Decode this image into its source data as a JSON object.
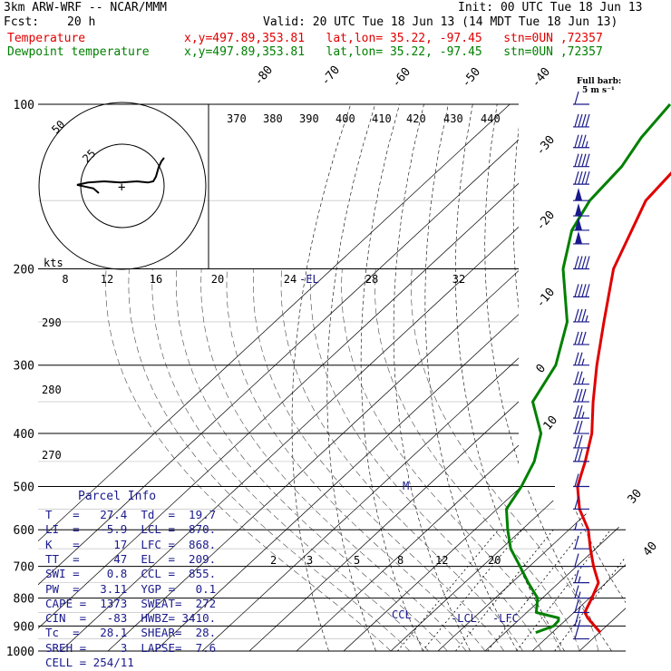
{
  "header": {
    "model": "3km ARW-WRF -- NCAR/MMM",
    "init": "Init: 00 UTC Tue 18 Jun 13",
    "fcst_label": "Fcst:",
    "fcst_value": "20 h",
    "valid": "Valid: 20 UTC Tue 18 Jun 13 (14 MDT Tue 18 Jun 13)",
    "temp_label": "Temperature",
    "temp_info": "x,y=497.89,353.81   lat,lon= 35.22, -97.45   stn=0UN ,72357",
    "dew_label": "Dewpoint temperature",
    "dew_info": "x,y=497.89,353.81   lat,lon= 35.22, -97.45   stn=0UN ,72357"
  },
  "colors": {
    "temperature": "#e00000",
    "dewpoint": "#008000",
    "text": "#1a1a8c",
    "hodograph": "#000000"
  },
  "parcel_info": {
    "title": "Parcel Info",
    "rows": [
      "T   =   27.4  Td  =  19.7",
      "LI  =   -5.9  LCL =  870.",
      "K   =     17  LFC =  868.",
      "TT  =     47  EL  =  209.",
      "SWI =    0.8  CCL =  855.",
      "PW  =   3.11  YGP =   0.1",
      "CAPE =  1373  SWEAT=  272",
      "CIN  =   -83  HWBZ= 3410.",
      "Tc  =   28.1  SHEAR=  28.",
      "SREH =     3  LAPSE=  7.6",
      "CELL = 254/11"
    ]
  },
  "wind_legend": {
    "line1": "Full barb:",
    "line2": "5 m s⁻¹"
  },
  "hodograph": {
    "units": "kts",
    "ring_labels": [
      "25",
      "50"
    ],
    "speed_labels": [
      "8",
      "12",
      "16",
      "20",
      "24",
      "28",
      "32"
    ],
    "points": [
      [
        -0.1,
        0.0
      ],
      [
        -0.2,
        0.2
      ],
      [
        -0.4,
        0.3
      ],
      [
        -0.5,
        0.35
      ],
      [
        -0.3,
        0.45
      ],
      [
        0.0,
        0.5
      ],
      [
        0.3,
        0.45
      ],
      [
        0.6,
        0.5
      ],
      [
        0.8,
        0.45
      ],
      [
        0.9,
        0.5
      ],
      [
        0.95,
        0.7
      ],
      [
        1.0,
        1.1
      ],
      [
        1.05,
        1.35
      ],
      [
        1.1,
        1.5
      ]
    ]
  },
  "chart_data": {
    "type": "line",
    "title": "",
    "ylabel": "",
    "xlabel": "",
    "pressure_levels": [
      100,
      200,
      300,
      400,
      500,
      600,
      700,
      800,
      900,
      1000
    ],
    "isotherm_labels": [
      "-80",
      "-70",
      "-60",
      "-50",
      "-40",
      "-30",
      "-20",
      "-10",
      "0",
      "10",
      "30",
      "40"
    ],
    "theta_labels": [
      "370",
      "380",
      "390",
      "400",
      "410",
      "420",
      "430",
      "440",
      "290",
      "280",
      "270"
    ],
    "mixing_ratio_labels": [
      "2",
      "3",
      "5",
      "8",
      "12",
      "20"
    ],
    "level_labels": {
      "el": "-EL",
      "lcl": "-LCL",
      "lfc": "-LFC",
      "ccl": "CCL",
      "m": "M"
    },
    "series": [
      {
        "name": "Temperature",
        "points": [
          [
            925,
            30.2
          ],
          [
            900,
            27.5
          ],
          [
            870,
            24.2
          ],
          [
            850,
            22.3
          ],
          [
            800,
            20.5
          ],
          [
            750,
            18.4
          ],
          [
            700,
            13.6
          ],
          [
            650,
            8.9
          ],
          [
            600,
            4.1
          ],
          [
            550,
            -2.5
          ],
          [
            500,
            -8.1
          ],
          [
            450,
            -12.2
          ],
          [
            400,
            -17.2
          ],
          [
            350,
            -24.2
          ],
          [
            300,
            -31.8
          ],
          [
            250,
            -40.2
          ],
          [
            200,
            -50.3
          ],
          [
            150,
            -59.1
          ],
          [
            120,
            -60.8
          ],
          [
            100,
            -62.0
          ]
        ]
      },
      {
        "name": "Dewpoint temperature",
        "points": [
          [
            925,
            16.5
          ],
          [
            900,
            18.8
          ],
          [
            880,
            18.6
          ],
          [
            870,
            18.0
          ],
          [
            850,
            12.0
          ],
          [
            800,
            9.0
          ],
          [
            750,
            3.5
          ],
          [
            700,
            -2.0
          ],
          [
            650,
            -8.0
          ],
          [
            600,
            -13.0
          ],
          [
            550,
            -18.0
          ],
          [
            500,
            -20.0
          ],
          [
            450,
            -23.0
          ],
          [
            400,
            -28.0
          ],
          [
            350,
            -37.0
          ],
          [
            300,
            -40.5
          ],
          [
            250,
            -48.0
          ],
          [
            200,
            -61.0
          ],
          [
            170,
            -68.0
          ],
          [
            150,
            -71.0
          ],
          [
            130,
            -72.0
          ],
          [
            115,
            -74.5
          ],
          [
            100,
            -76.0
          ]
        ]
      }
    ],
    "wind_barbs_ms": [
      [
        100,
        5
      ],
      [
        110,
        22
      ],
      [
        120,
        18
      ],
      [
        130,
        20
      ],
      [
        140,
        22
      ],
      [
        150,
        25
      ],
      [
        160,
        27
      ],
      [
        170,
        27
      ],
      [
        180,
        25
      ],
      [
        200,
        22
      ],
      [
        225,
        20
      ],
      [
        250,
        18
      ],
      [
        275,
        15
      ],
      [
        300,
        14
      ],
      [
        325,
        14
      ],
      [
        350,
        15
      ],
      [
        375,
        14
      ],
      [
        400,
        12
      ],
      [
        425,
        12
      ],
      [
        450,
        10
      ],
      [
        500,
        8
      ],
      [
        550,
        5
      ],
      [
        600,
        3
      ],
      [
        650,
        5
      ],
      [
        700,
        6
      ],
      [
        750,
        8
      ],
      [
        800,
        8
      ],
      [
        850,
        9
      ],
      [
        900,
        8
      ],
      [
        950,
        6
      ]
    ]
  }
}
